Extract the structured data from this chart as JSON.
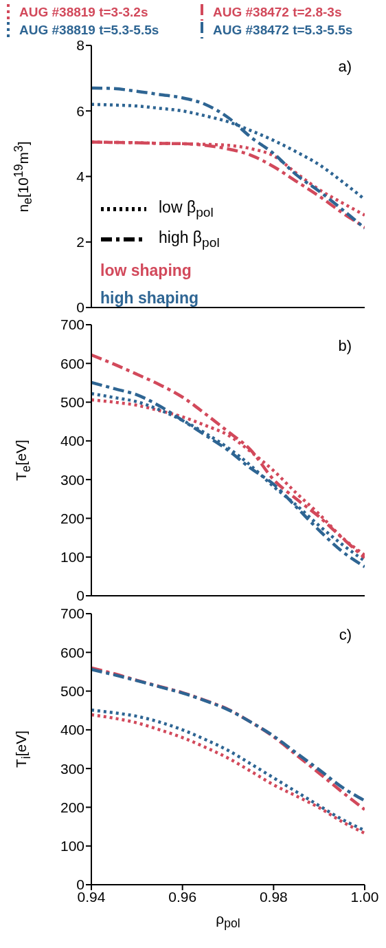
{
  "chart_data": [
    {
      "type": "line",
      "legend": "top",
      "ylabel": "n$_{e}$[10$^{19}$m$^{3}$]",
      "annotations": [
        "a)",
        "low β$_{pol}$",
        "high β$_{pol}$",
        "low shaping",
        "high shaping"
      ],
      "x": [
        0.94,
        0.945,
        0.95,
        0.955,
        0.96,
        0.965,
        0.97,
        0.975,
        0.98,
        0.985,
        0.99,
        0.995,
        1.0
      ],
      "xlim": [
        0.94,
        1.0
      ],
      "xticks": [
        0.94,
        0.96,
        0.98,
        1.0
      ],
      "ylim": [
        0,
        8
      ],
      "yticks": [
        0,
        2,
        4,
        6,
        8
      ],
      "tick_labels": "y",
      "marker": "none",
      "series": [
        {
          "name": "AUG #38819 t=3-3.2s",
          "color": "#d2495b",
          "line_style": "dotted",
          "values": [
            5.05,
            5.04,
            5.03,
            5.01,
            5.0,
            4.98,
            4.95,
            4.85,
            4.63,
            4.1,
            3.6,
            3.2,
            2.82
          ]
        },
        {
          "name": "AUG #38819 t=5.3-5.5s",
          "color": "#2e6593",
          "line_style": "dotted",
          "values": [
            6.2,
            6.18,
            6.15,
            6.08,
            6.0,
            5.85,
            5.67,
            5.4,
            5.1,
            4.75,
            4.36,
            3.85,
            3.3
          ]
        },
        {
          "name": "AUG #38472 t=2.8-3s",
          "color": "#d2495b",
          "line_style": "dashdot",
          "values": [
            5.05,
            5.04,
            5.03,
            5.01,
            5.0,
            4.95,
            4.84,
            4.65,
            4.3,
            3.85,
            3.4,
            2.9,
            2.45
          ]
        },
        {
          "name": "AUG #38472 t=5.3-5.5s",
          "color": "#2e6593",
          "line_style": "dashdot",
          "values": [
            6.7,
            6.68,
            6.6,
            6.5,
            6.4,
            6.2,
            5.8,
            5.2,
            4.7,
            4.05,
            3.55,
            3.0,
            2.42
          ]
        }
      ]
    },
    {
      "type": "line",
      "ylabel": "T$_{e}$[eV]",
      "annotations": [
        "b)"
      ],
      "x": [
        0.94,
        0.945,
        0.95,
        0.955,
        0.96,
        0.965,
        0.97,
        0.975,
        0.98,
        0.985,
        0.99,
        0.995,
        1.0
      ],
      "xlim": [
        0.94,
        1.0
      ],
      "xticks": [
        0.94,
        0.96,
        0.98,
        1.0
      ],
      "ylim": [
        0,
        700
      ],
      "yticks": [
        0,
        100,
        200,
        300,
        400,
        500,
        600,
        700
      ],
      "tick_labels": "y",
      "marker": "none",
      "series": [
        {
          "color": "#d2495b",
          "line_style": "dotted",
          "values": [
            506,
            500,
            492,
            478,
            462,
            440,
            415,
            372,
            323,
            265,
            211,
            151,
            105
          ]
        },
        {
          "color": "#2e6593",
          "line_style": "dotted",
          "values": [
            522,
            512,
            501,
            480,
            453,
            420,
            382,
            336,
            282,
            234,
            181,
            133,
            90
          ]
        },
        {
          "color": "#d2495b",
          "line_style": "dashdot",
          "values": [
            622,
            598,
            572,
            545,
            513,
            470,
            424,
            376,
            300,
            250,
            204,
            150,
            98
          ]
        },
        {
          "color": "#2e6593",
          "line_style": "dashdot",
          "values": [
            551,
            535,
            519,
            490,
            453,
            415,
            376,
            329,
            288,
            229,
            169,
            115,
            75
          ]
        }
      ]
    },
    {
      "type": "line",
      "ylabel": "T$_{i}$[eV]",
      "xlabel": "ρ$_{pol}$",
      "annotations": [
        "c)"
      ],
      "x": [
        0.94,
        0.945,
        0.95,
        0.955,
        0.96,
        0.965,
        0.97,
        0.975,
        0.98,
        0.985,
        0.99,
        0.995,
        1.0
      ],
      "xlim": [
        0.94,
        1.0
      ],
      "xticks": [
        0.94,
        0.96,
        0.98,
        {
          "value": 1.0,
          "label": "1.00"
        }
      ],
      "ylim": [
        0,
        700
      ],
      "yticks": [
        0,
        100,
        200,
        300,
        400,
        500,
        600,
        700
      ],
      "marker": "none",
      "series": [
        {
          "color": "#d2495b",
          "line_style": "dotted",
          "values": [
            439,
            430,
            418,
            400,
            380,
            355,
            327,
            293,
            258,
            229,
            199,
            163,
            133
          ]
        },
        {
          "color": "#2e6593",
          "line_style": "dotted",
          "values": [
            451,
            444,
            435,
            420,
            400,
            375,
            347,
            312,
            276,
            240,
            204,
            169,
            140
          ]
        },
        {
          "color": "#d2495b",
          "line_style": "dashdot",
          "values": [
            560,
            545,
            528,
            512,
            496,
            476,
            453,
            420,
            382,
            335,
            288,
            240,
            194
          ]
        },
        {
          "color": "#2e6593",
          "line_style": "dashdot",
          "values": [
            556,
            542,
            527,
            511,
            495,
            475,
            452,
            420,
            384,
            340,
            297,
            252,
            217
          ]
        }
      ]
    }
  ]
}
